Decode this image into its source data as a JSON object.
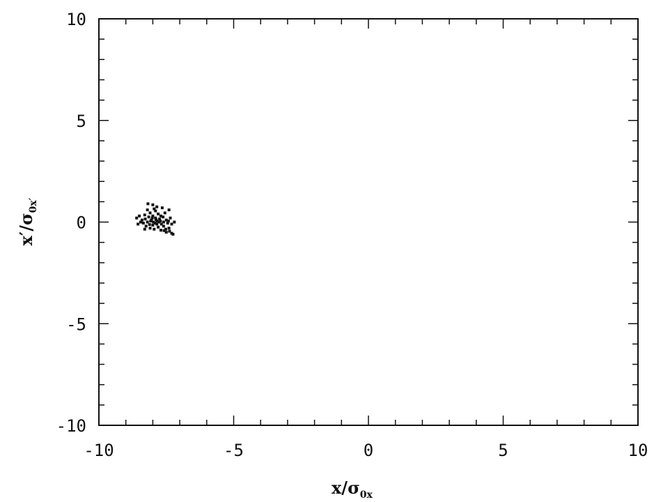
{
  "chart_data": {
    "type": "scatter",
    "title": "",
    "xlabel": {
      "main": "x/σ",
      "sub": "0x"
    },
    "ylabel": {
      "main": "x′/σ",
      "sub": "0x′"
    },
    "xlim": [
      -10,
      10
    ],
    "ylim": [
      -10,
      10
    ],
    "grid": false,
    "x_ticks": [
      -10,
      -5,
      0,
      5,
      10
    ],
    "y_ticks": [
      -10,
      -5,
      0,
      5,
      10
    ],
    "x_tick_labels": [
      "-10",
      "-5",
      "0",
      "5",
      "10"
    ],
    "y_tick_labels": [
      "-10",
      "-5",
      "0",
      "5",
      "10"
    ],
    "series": [
      {
        "color": "#111111",
        "points": [
          [
            -8.5,
            0.3
          ],
          [
            -8.4,
            0.1
          ],
          [
            -8.35,
            -0.05
          ],
          [
            -8.3,
            0.35
          ],
          [
            -8.25,
            -0.2
          ],
          [
            -8.2,
            0.6
          ],
          [
            -8.2,
            0.0
          ],
          [
            -8.15,
            0.25
          ],
          [
            -8.1,
            -0.3
          ],
          [
            -8.1,
            0.45
          ],
          [
            -8.05,
            0.1
          ],
          [
            -8.0,
            -0.15
          ],
          [
            -8.0,
            0.85
          ],
          [
            -8.0,
            0.3
          ],
          [
            -7.95,
            -0.35
          ],
          [
            -7.9,
            0.2
          ],
          [
            -7.9,
            0.55
          ],
          [
            -7.85,
            -0.1
          ],
          [
            -7.85,
            0.05
          ],
          [
            -7.8,
            0.4
          ],
          [
            -7.8,
            -0.25
          ],
          [
            -7.75,
            0.15
          ],
          [
            -7.7,
            -0.4
          ],
          [
            -7.7,
            0.3
          ],
          [
            -7.65,
            0.7
          ],
          [
            -7.6,
            0.0
          ],
          [
            -7.6,
            -0.2
          ],
          [
            -7.55,
            0.45
          ],
          [
            -7.5,
            -0.5
          ],
          [
            -7.5,
            0.1
          ],
          [
            -7.45,
            -0.05
          ],
          [
            -7.4,
            -0.3
          ],
          [
            -7.4,
            0.6
          ],
          [
            -7.35,
            0.2
          ],
          [
            -7.3,
            -0.55
          ],
          [
            -7.3,
            -0.1
          ],
          [
            -8.45,
            0.0
          ],
          [
            -8.28,
            0.15
          ],
          [
            -8.12,
            -0.12
          ],
          [
            -8.08,
            0.05
          ],
          [
            -7.98,
            0.0
          ],
          [
            -7.92,
            -0.05
          ],
          [
            -7.88,
            0.12
          ],
          [
            -7.72,
            0.05
          ],
          [
            -7.68,
            -0.1
          ],
          [
            -7.62,
            0.25
          ],
          [
            -7.52,
            -0.35
          ],
          [
            -7.42,
            0.05
          ],
          [
            -8.18,
            0.9
          ],
          [
            -7.95,
            0.65
          ],
          [
            -7.85,
            0.75
          ],
          [
            -8.3,
            -0.35
          ],
          [
            -7.58,
            -0.42
          ],
          [
            -7.38,
            -0.45
          ],
          [
            -7.25,
            -0.6
          ],
          [
            -7.2,
            0.0
          ],
          [
            -8.6,
            0.2
          ],
          [
            -8.55,
            -0.1
          ],
          [
            -7.78,
            0.0
          ],
          [
            -8.02,
            0.2
          ]
        ]
      }
    ]
  }
}
